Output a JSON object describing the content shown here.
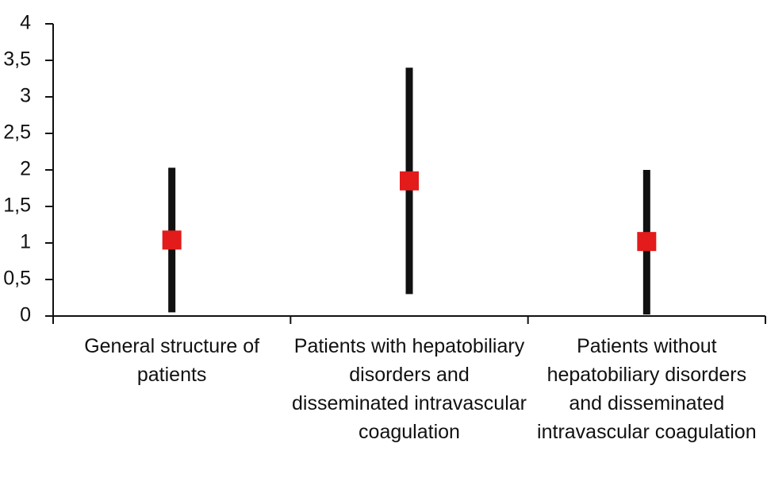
{
  "chart_data": {
    "type": "errorbar",
    "categories": [
      "General structure of patients",
      "Patients with hepatobiliary disorders and disseminated intravascular coagulation",
      "Patients without hepatobiliary disorders and disseminated intravascular coagulation"
    ],
    "values": [
      1.04,
      1.85,
      1.02
    ],
    "low": [
      0.05,
      0.3,
      0.02
    ],
    "high": [
      2.03,
      3.4,
      2.0
    ],
    "color": "#e31b1b",
    "range_color": "#111111",
    "ylim": [
      0,
      4
    ],
    "yticks": [
      0,
      {
        "value": 0.5,
        "label": "0,5"
      },
      1,
      {
        "value": 1.5,
        "label": "1,5"
      },
      2,
      {
        "value": 2.5,
        "label": "2,5"
      },
      3,
      {
        "value": 3.5,
        "label": "3,5"
      },
      4
    ]
  }
}
